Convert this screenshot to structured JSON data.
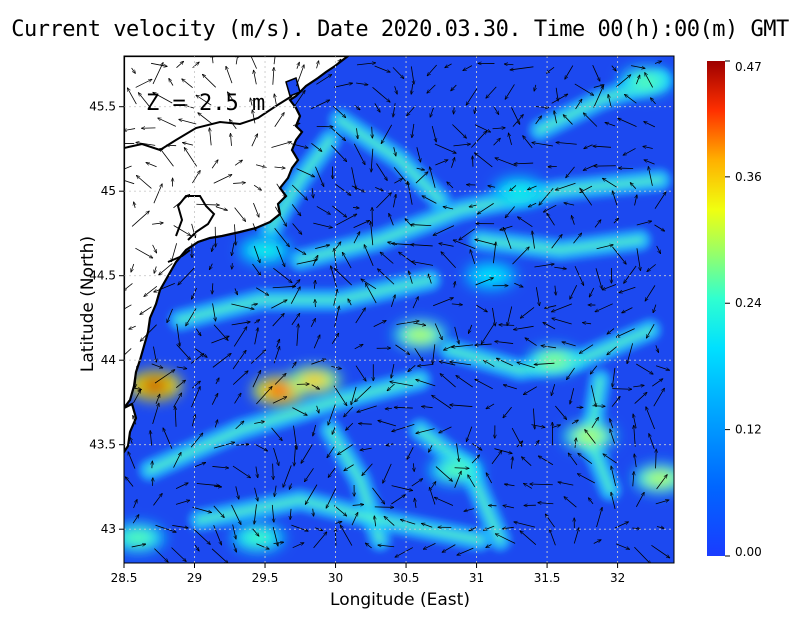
{
  "chart_data": {
    "type": "heatmap",
    "title": "Current velocity (m/s). Date 2020.03.30. Time 00(h):00(m) GMT",
    "xlabel": "Longitude (East)",
    "ylabel": "Latitude (North)",
    "depth_label": "Z = 2.5 m",
    "xlim": [
      28.5,
      32.4
    ],
    "ylim": [
      42.8,
      45.8
    ],
    "x_ticks": [
      28.5,
      29,
      29.5,
      30,
      30.5,
      31,
      31.5,
      32
    ],
    "x_tick_labels": [
      "28.5",
      "29",
      "29.5",
      "30",
      "30.5",
      "31",
      "31.5",
      "32"
    ],
    "y_ticks": [
      43,
      43.5,
      44,
      44.5,
      45,
      45.5
    ],
    "y_tick_labels": [
      "43",
      "43.5",
      "44",
      "44.5",
      "45",
      "45.5"
    ],
    "grid": true,
    "colorbar": {
      "min": 0.0,
      "max": 0.47,
      "ticks": [
        0.0,
        0.12,
        0.24,
        0.36,
        0.47
      ],
      "tick_labels": [
        "0.00",
        "0.12",
        "0.24",
        "0.36",
        "0.47"
      ],
      "colormap": "jet"
    },
    "hotspots": [
      {
        "lon": 28.72,
        "lat": 43.85,
        "speed": 0.45
      },
      {
        "lon": 29.6,
        "lat": 43.82,
        "speed": 0.42
      },
      {
        "lon": 29.85,
        "lat": 43.88,
        "speed": 0.36
      },
      {
        "lon": 30.6,
        "lat": 44.15,
        "speed": 0.3
      },
      {
        "lon": 30.85,
        "lat": 43.35,
        "speed": 0.26
      },
      {
        "lon": 31.8,
        "lat": 43.55,
        "speed": 0.3
      },
      {
        "lon": 31.55,
        "lat": 44.0,
        "speed": 0.28
      },
      {
        "lon": 32.3,
        "lat": 43.3,
        "speed": 0.3
      },
      {
        "lon": 32.2,
        "lat": 45.65,
        "speed": 0.26
      },
      {
        "lon": 29.5,
        "lat": 44.65,
        "speed": 0.22
      },
      {
        "lon": 28.6,
        "lat": 42.95,
        "speed": 0.26
      },
      {
        "lon": 29.45,
        "lat": 42.95,
        "speed": 0.25
      },
      {
        "lon": 31.1,
        "lat": 44.5,
        "speed": 0.2
      },
      {
        "lon": 31.3,
        "lat": 45.0,
        "speed": 0.22
      }
    ]
  }
}
